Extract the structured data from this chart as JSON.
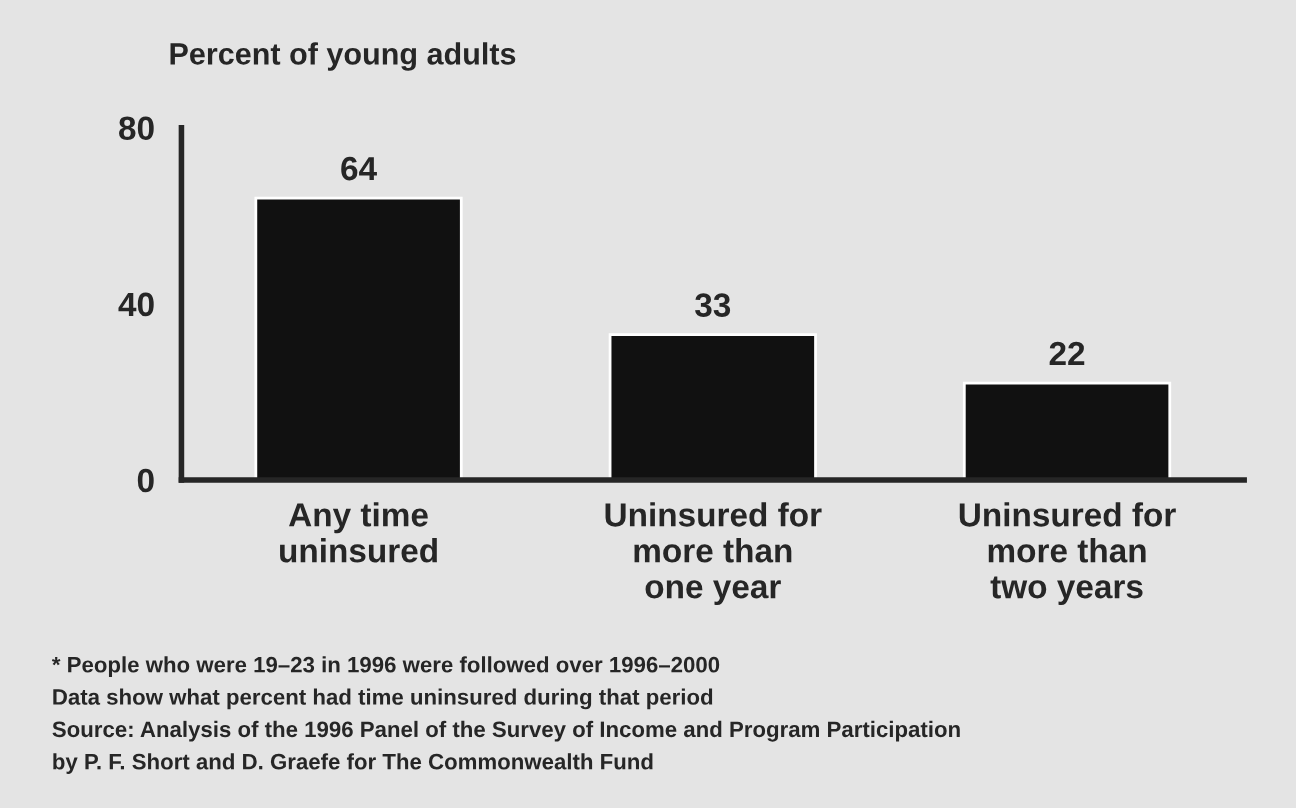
{
  "chart_data": {
    "type": "bar",
    "ylabel": "Percent of young adults",
    "categories": [
      "Any time\nuninsured",
      "Uninsured for\nmore than\none year",
      "Uninsured for\nmore than\ntwo years"
    ],
    "values": [
      64,
      33,
      22
    ],
    "color": "#111111",
    "ylim": [
      0,
      80
    ],
    "yticks": [
      0,
      40,
      80
    ],
    "grid": false,
    "data_labels": true,
    "annotations": [
      "* People who were 19–23 in 1996 were followed over 1996–2000",
      "Data show what percent had time uninsured during that period",
      "Source: Analysis of the 1996 Panel of the Survey of Income and Program Participation",
      "by P. F. Short and D. Graefe for The Commonwealth Fund"
    ]
  }
}
